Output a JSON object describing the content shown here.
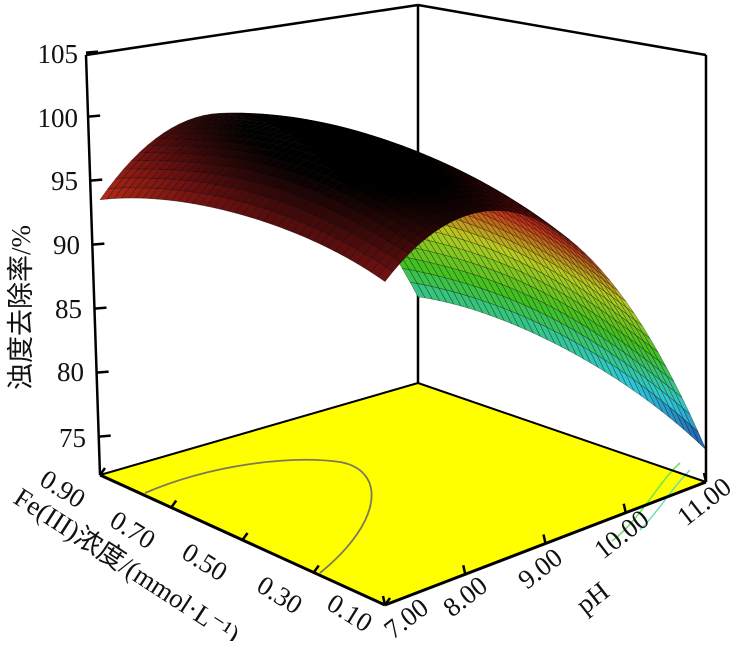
{
  "chart_data": {
    "type": "surface",
    "title": "",
    "x_axis": {
      "label": "Fe(III)浓度/(mmol·L⁻¹)",
      "ticks": [
        "0.90",
        "0.70",
        "0.50",
        "0.30",
        "0.10"
      ],
      "values": [
        0.1,
        0.3,
        0.5,
        0.7,
        0.9
      ]
    },
    "y_axis": {
      "label": "pH",
      "ticks": [
        "7.00",
        "8.00",
        "9.00",
        "10.00",
        "11.00"
      ],
      "values": [
        7,
        8,
        9,
        10,
        11
      ]
    },
    "z_axis": {
      "label": "浊度去除率/%",
      "ticks": [
        "75",
        "80",
        "85",
        "90",
        "95",
        "100",
        "105"
      ],
      "range": [
        72,
        105
      ]
    },
    "z_grid_note_order": "rows = pH 7..11, columns = Fe 0.1..0.9",
    "z_values": [
      [
        96.5,
        97.3,
        97.0,
        95.8,
        93.5
      ],
      [
        99.3,
        100.5,
        100.8,
        100.0,
        98.3
      ],
      [
        96.5,
        98.3,
        99.0,
        98.8,
        97.5
      ],
      [
        88.3,
        90.5,
        91.8,
        92.0,
        91.3
      ],
      [
        74.5,
        77.3,
        79.0,
        79.8,
        79.5
      ]
    ],
    "colormap": [
      "#1a2fa0",
      "#2fc8d8",
      "#3fc020",
      "#c8d020",
      "#c83018",
      "#6a1010",
      "#000000"
    ],
    "floor_color": "#ffff00",
    "floor_contours": true,
    "grid": false
  }
}
